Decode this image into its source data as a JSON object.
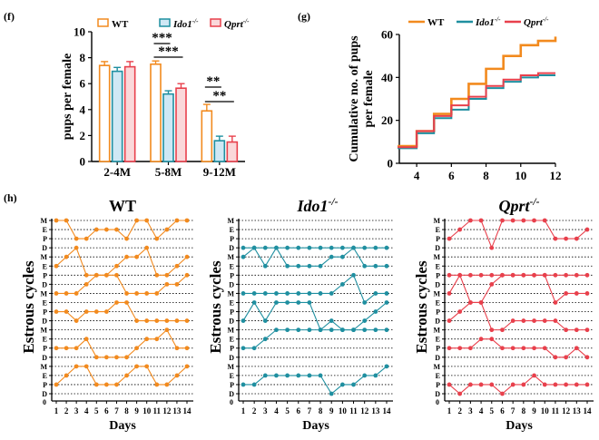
{
  "colors": {
    "wt": "#F28A1E",
    "ido1": "#1F8FA0",
    "qprt": "#E8404C",
    "ido1_fill": "#CFE8F5",
    "qprt_fill": "#FAD8DA",
    "wt_fill": "#FFFFFF"
  },
  "panel_labels": {
    "f": "(f)",
    "g": "(g)",
    "h": "(h)"
  },
  "chart_data": [
    {
      "id": "f",
      "type": "bar",
      "ylabel": "pups per female",
      "xlabel": "",
      "ylim": [
        0,
        10
      ],
      "yticks": [
        0,
        2,
        4,
        6,
        8,
        10
      ],
      "categories": [
        "2-4M",
        "5-8M",
        "9-12M"
      ],
      "legend": [
        "WT",
        "Ido1-/-",
        "Qprt -/-"
      ],
      "legend_placement": "top",
      "series": [
        {
          "name": "WT",
          "values": [
            7.4,
            7.5,
            3.9
          ],
          "errors": [
            0.3,
            0.25,
            0.5
          ]
        },
        {
          "name": "Ido1-/-",
          "values": [
            6.95,
            5.2,
            1.6
          ],
          "errors": [
            0.3,
            0.25,
            0.35
          ]
        },
        {
          "name": "Qprt -/-",
          "values": [
            7.3,
            5.65,
            1.5
          ],
          "errors": [
            0.4,
            0.35,
            0.45
          ]
        }
      ],
      "significance": [
        {
          "category": "5-8M",
          "label": "***",
          "from": "WT",
          "to": "Ido1-/-"
        },
        {
          "category": "5-8M",
          "label": "***",
          "from": "WT",
          "to": "Qprt -/-"
        },
        {
          "category": "9-12M",
          "label": "**",
          "from": "WT",
          "to": "Ido1-/-"
        },
        {
          "category": "9-12M",
          "label": "**",
          "from": "WT",
          "to": "Qprt -/-"
        }
      ]
    },
    {
      "id": "g",
      "type": "line",
      "ylabel": "Cumulative no. of pups per female",
      "xlim": [
        3,
        12
      ],
      "ylim": [
        0,
        60
      ],
      "xticks": [
        4,
        6,
        8,
        10,
        12
      ],
      "yticks": [
        0,
        20,
        40,
        60
      ],
      "legend": [
        "WT",
        "Ido1-/-",
        "Qprt -/-"
      ],
      "legend_placement": "top",
      "series": [
        {
          "name": "WT",
          "x": [
            3,
            4,
            5,
            6,
            7,
            8,
            9,
            10,
            11,
            12
          ],
          "y": [
            8,
            15,
            23,
            30,
            37,
            44,
            50,
            55,
            57,
            59
          ]
        },
        {
          "name": "Ido1-/-",
          "x": [
            3,
            4,
            5,
            6,
            7,
            8,
            9,
            10,
            11,
            12
          ],
          "y": [
            7,
            14,
            21,
            25,
            30,
            35,
            38,
            40,
            41,
            41
          ]
        },
        {
          "name": "Qprt -/-",
          "x": [
            3,
            4,
            5,
            6,
            7,
            8,
            9,
            10,
            11,
            12
          ],
          "y": [
            7.5,
            15,
            22,
            27,
            31,
            36,
            39,
            41,
            42,
            42
          ]
        }
      ]
    },
    {
      "id": "h",
      "type": "line",
      "panel_titles": [
        "WT",
        "Ido1-/-",
        "Qprt-/-"
      ],
      "ylabel": "Estrous cycles",
      "xlabel": "Days",
      "days": [
        1,
        2,
        3,
        4,
        5,
        6,
        7,
        8,
        9,
        10,
        11,
        12,
        13,
        14
      ],
      "stage_labels": [
        "M",
        "E",
        "P",
        "D"
      ],
      "stage_values": {
        "D": 0,
        "P": 1,
        "E": 2,
        "M": 3
      },
      "y_zero_label": "0",
      "panels": [
        {
          "name": "WT",
          "mice": [
            [
              3,
              3,
              1,
              1,
              2,
              2,
              2,
              1,
              3,
              3,
              1,
              2,
              3,
              3
            ],
            [
              1,
              2,
              3,
              0,
              0,
              0,
              1,
              2,
              2,
              3,
              0,
              0,
              1,
              2
            ],
            [
              1,
              1,
              1,
              2,
              3,
              3,
              3,
              1,
              1,
              1,
              1,
              2,
              2,
              3
            ],
            [
              2,
              2,
              1,
              2,
              2,
              2,
              3,
              3,
              1,
              1,
              1,
              1,
              1,
              1
            ],
            [
              1,
              1,
              1,
              2,
              0,
              0,
              0,
              0,
              1,
              2,
              2,
              3,
              1,
              1
            ],
            [
              1,
              2,
              3,
              3,
              1,
              1,
              1,
              2,
              3,
              3,
              1,
              1,
              2,
              3
            ]
          ]
        },
        {
          "name": "Ido1-/-",
          "mice": [
            [
              0,
              0,
              0,
              0,
              0,
              0,
              0,
              0,
              0,
              0,
              0,
              0,
              0,
              0
            ],
            [
              2,
              3,
              1,
              3,
              1,
              1,
              1,
              1,
              2,
              2,
              3,
              1,
              1,
              1
            ],
            [
              1,
              1,
              1,
              1,
              1,
              1,
              1,
              1,
              1,
              2,
              3,
              0,
              1,
              1
            ],
            [
              1,
              3,
              1,
              3,
              3,
              3,
              3,
              0,
              1,
              0,
              0,
              1,
              2,
              3
            ],
            [
              1,
              1,
              2,
              3,
              3,
              3,
              3,
              3,
              3,
              3,
              3,
              3,
              3,
              3
            ],
            [
              1,
              1,
              2,
              2,
              2,
              2,
              2,
              2,
              0,
              1,
              1,
              2,
              2,
              3
            ]
          ]
        },
        {
          "name": "Qprt -/-",
          "mice": [
            [
              1,
              2,
              3,
              3,
              0,
              3,
              3,
              3,
              3,
              3,
              1,
              1,
              1,
              2
            ],
            [
              0,
              0,
              0,
              0,
              0,
              0,
              0,
              0,
              0,
              0,
              0,
              0,
              0,
              0
            ],
            [
              1,
              3,
              0,
              0,
              2,
              3,
              3,
              3,
              3,
              3,
              0,
              1,
              1,
              1
            ],
            [
              1,
              2,
              3,
              3,
              0,
              0,
              1,
              1,
              1,
              1,
              1,
              0,
              0,
              0
            ],
            [
              1,
              1,
              1,
              2,
              2,
              1,
              1,
              1,
              1,
              1,
              0,
              0,
              1,
              0
            ],
            [
              1,
              0,
              1,
              1,
              1,
              0,
              1,
              1,
              2,
              1,
              1,
              1,
              1,
              1
            ]
          ]
        }
      ]
    }
  ]
}
